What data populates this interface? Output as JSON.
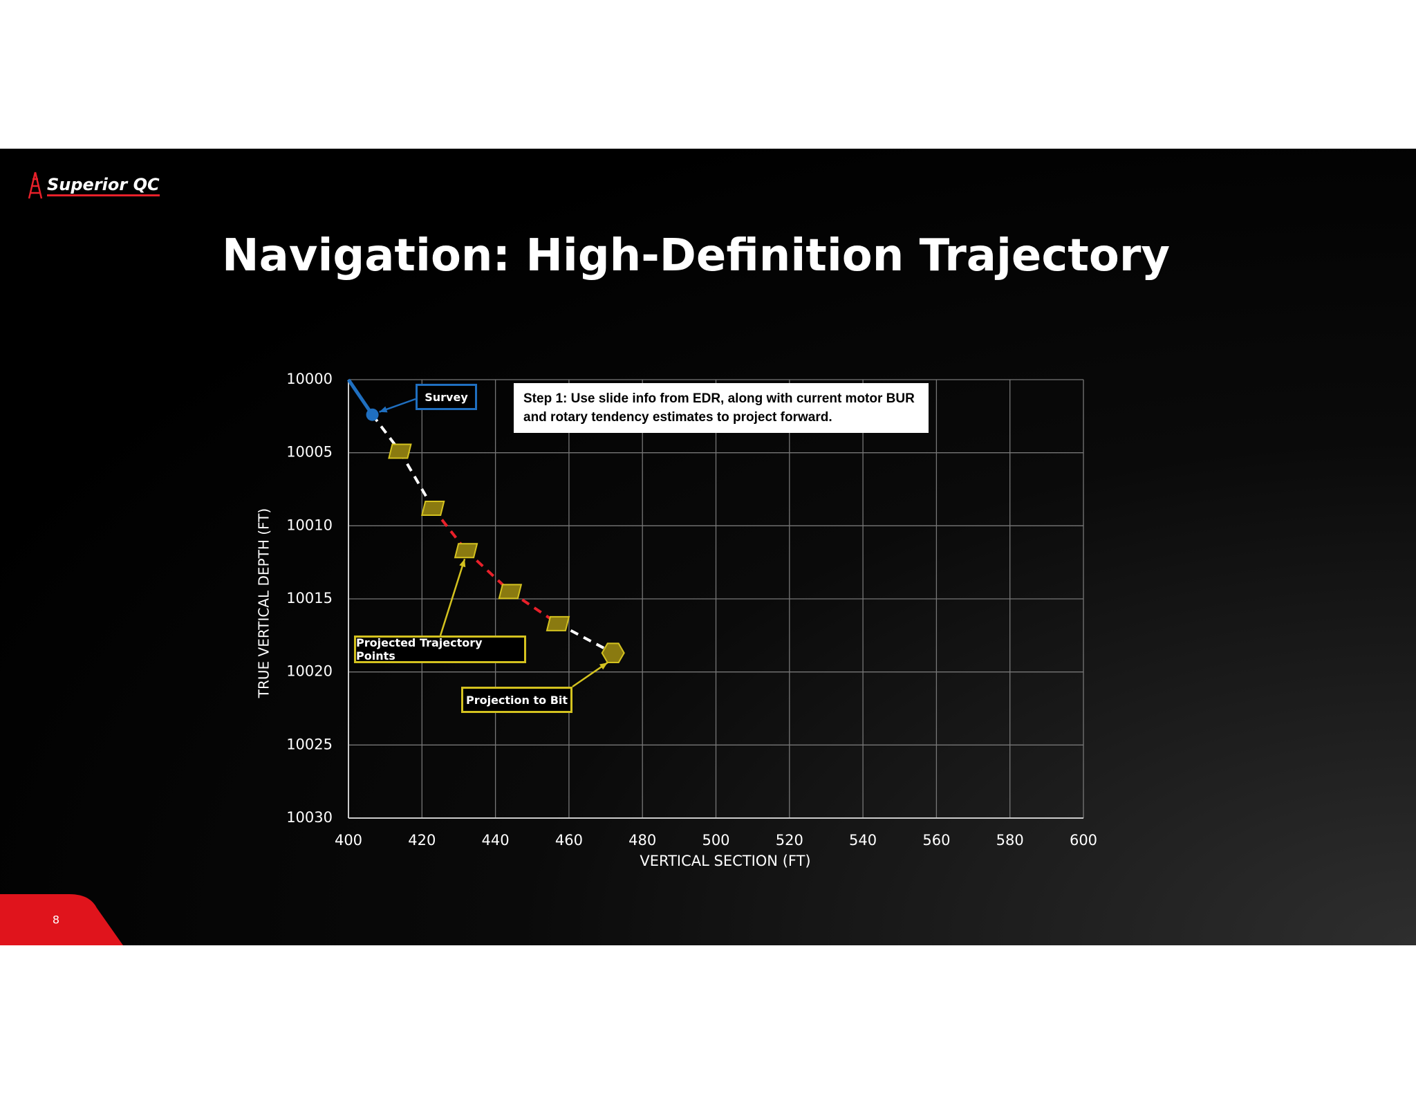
{
  "brand": "Superior QC",
  "title": "Navigation: High-Definition Trajectory",
  "page_number": "8",
  "chart_data": {
    "type": "scatter",
    "x_label": "VERTICAL SECTION (FT)",
    "y_label": "TRUE VERTICAL DEPTH (FT)",
    "xlim": [
      400,
      600
    ],
    "xticks": [
      400,
      420,
      440,
      460,
      480,
      500,
      520,
      540,
      560,
      580,
      600
    ],
    "ylim": [
      10000,
      10030
    ],
    "yticks": [
      10000,
      10005,
      10010,
      10015,
      10020,
      10025,
      10030
    ],
    "y_inverted": true,
    "grid": true,
    "annotation": "Step 1: Use slide info from EDR, along with current motor BUR and rotary tendency estimates to project forward.",
    "series": [
      {
        "name": "Survey",
        "color": "#1f6fc0",
        "marker": "circle",
        "x": [
          400,
          406.5
        ],
        "values": [
          10000,
          10002.4
        ]
      },
      {
        "name": "Projected Trajectory Points",
        "color": "#d4c21f",
        "marker": "parallelogram",
        "x": [
          414,
          423,
          432,
          444,
          457
        ],
        "values": [
          10004.9,
          10008.8,
          10011.7,
          10014.5,
          10016.7
        ]
      },
      {
        "name": "Projection to Bit",
        "color": "#d4c21f",
        "marker": "hexagon",
        "x": [
          472
        ],
        "values": [
          10018.7
        ]
      }
    ],
    "connector_colors": [
      "#ffffff",
      "#ffffff",
      "#e8202a",
      "#e8202a",
      "#e8202a",
      "#ffffff"
    ]
  }
}
